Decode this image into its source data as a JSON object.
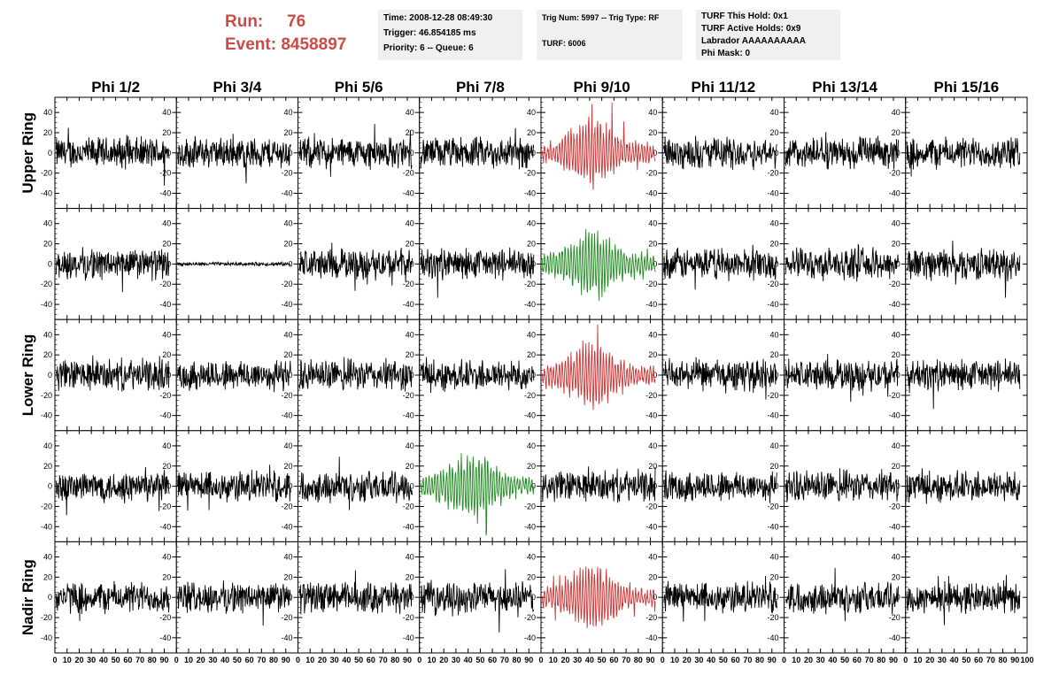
{
  "header": {
    "run_label": "Run:",
    "run_value": "76",
    "event_label": "Event:",
    "event_value": "8458897",
    "time": "Time: 2008-12-28 08:49:30",
    "trigger": "Trigger: 46.854185 ms",
    "priority": "Priority: 6 -- Queue: 6",
    "trig_num": "Trig Num: 5997 -- Trig Type: RF",
    "turf": "TURF: 6006",
    "turf_hold": "TURF This Hold: 0x1",
    "turf_active": "TURF Active Holds: 0x9",
    "labrador": "Labrador AAAAAAAAAA",
    "phi_mask": "Phi Mask: 0"
  },
  "colors": {
    "trace": "#000000",
    "trigger": "#cc3333",
    "hpol": "#228b22",
    "title": "#cc4a48",
    "box": "#f0f0f0"
  },
  "chart_data": {
    "type": "line",
    "columns": [
      "Phi 1/2",
      "Phi 3/4",
      "Phi 5/6",
      "Phi 7/8",
      "Phi 9/10",
      "Phi 11/12",
      "Phi 13/14",
      "Phi 15/16"
    ],
    "rows": [
      "Upper Ring",
      "Upper Ring",
      "Lower Ring",
      "Lower Ring",
      "Nadir Ring"
    ],
    "row_labels": [
      "Upper Ring",
      "Lower Ring",
      "Nadir Ring"
    ],
    "xlim": [
      0,
      100
    ],
    "ylim": [
      -55,
      55
    ],
    "x_ticks": [
      0,
      10,
      20,
      30,
      40,
      50,
      60,
      70,
      80,
      90,
      100
    ],
    "y_ticks": [
      -40,
      -20,
      0,
      20,
      40
    ],
    "x_tick_labels": [
      "0",
      "10",
      "20",
      "30",
      "40",
      "50",
      "60",
      "70",
      "80",
      "90",
      "100"
    ],
    "y_tick_labels": [
      "-40",
      "-20",
      "0",
      "20",
      "40"
    ],
    "highlighted": [
      {
        "row": 0,
        "col": 4,
        "color": "#cc3333"
      },
      {
        "row": 1,
        "col": 4,
        "color": "#228b22"
      },
      {
        "row": 2,
        "col": 4,
        "color": "#cc3333"
      },
      {
        "row": 3,
        "col": 3,
        "color": "#228b22"
      },
      {
        "row": 4,
        "col": 4,
        "color": "#cc3333"
      }
    ],
    "flat": [
      {
        "row": 1,
        "col": 1
      }
    ],
    "noise_amplitude": 15,
    "signal_amplitude": 28
  }
}
